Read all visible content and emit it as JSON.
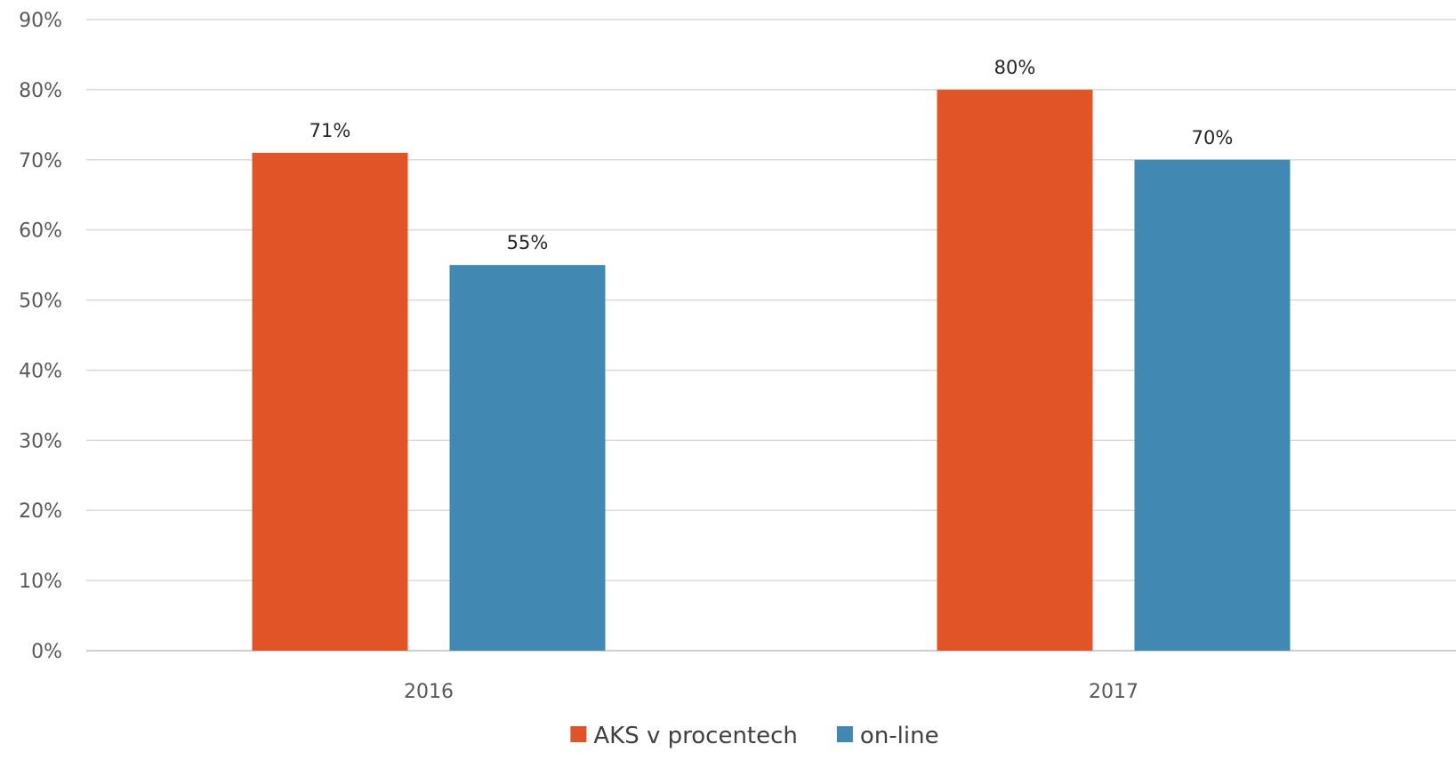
{
  "chart_data": {
    "type": "bar",
    "categories": [
      "2016",
      "2017"
    ],
    "series": [
      {
        "name": "AKS v procentech",
        "values": [
          71,
          80
        ],
        "labels": [
          "71%",
          "80%"
        ],
        "color": "#E05428"
      },
      {
        "name": "on-line",
        "values": [
          55,
          70
        ],
        "labels": [
          "55%",
          "70%"
        ],
        "color": "#4189B3"
      }
    ],
    "title": "",
    "xlabel": "",
    "ylabel": "",
    "ylim": [
      0,
      90
    ],
    "yticks": [
      0,
      10,
      20,
      30,
      40,
      50,
      60,
      70,
      80,
      90
    ],
    "ytick_labels": [
      "0%",
      "10%",
      "20%",
      "30%",
      "40%",
      "50%",
      "60%",
      "70%",
      "80%",
      "90%"
    ],
    "grid": true,
    "legend_position": "bottom"
  }
}
